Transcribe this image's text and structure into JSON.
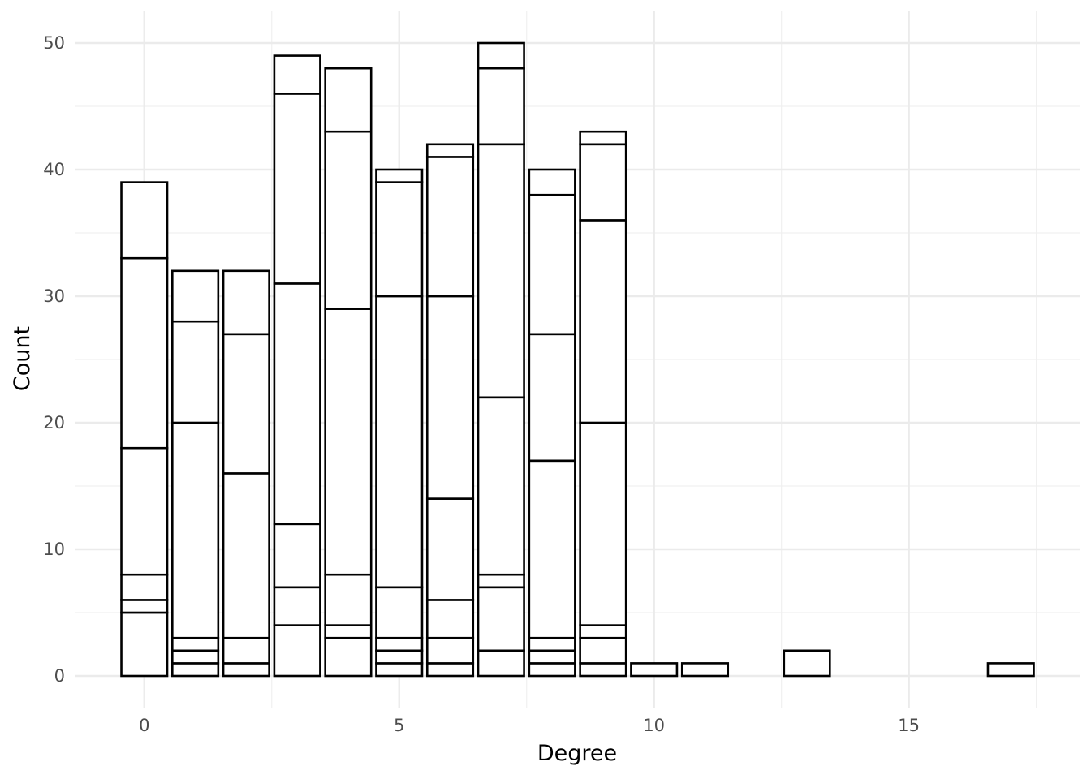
{
  "chart_data": {
    "type": "bar",
    "stacked": true,
    "title": "",
    "xlabel": "Degree",
    "ylabel": "Count",
    "xlim": [
      -1.35,
      18.35
    ],
    "ylim": [
      -2.5,
      52.5
    ],
    "x_ticks": [
      0,
      5,
      10,
      15
    ],
    "y_ticks": [
      0,
      10,
      20,
      30,
      40,
      50
    ],
    "grid": true,
    "legend": "none",
    "bar_fill": "#ffffff",
    "bar_outline": "#000000",
    "bars": [
      {
        "x": 0,
        "segment_tops": [
          5,
          6,
          8,
          18,
          33,
          39
        ]
      },
      {
        "x": 1,
        "segment_tops": [
          1,
          2,
          3,
          20,
          28,
          32
        ]
      },
      {
        "x": 2,
        "segment_tops": [
          1,
          3,
          16,
          27,
          32
        ]
      },
      {
        "x": 3,
        "segment_tops": [
          4,
          7,
          12,
          31,
          46,
          49
        ]
      },
      {
        "x": 4,
        "segment_tops": [
          3,
          4,
          8,
          29,
          43,
          48
        ]
      },
      {
        "x": 5,
        "segment_tops": [
          1,
          2,
          3,
          7,
          30,
          39,
          40
        ]
      },
      {
        "x": 6,
        "segment_tops": [
          1,
          3,
          6,
          14,
          30,
          41,
          42
        ]
      },
      {
        "x": 7,
        "segment_tops": [
          2,
          7,
          8,
          22,
          42,
          48,
          50
        ]
      },
      {
        "x": 8,
        "segment_tops": [
          1,
          2,
          3,
          17,
          27,
          38,
          40
        ]
      },
      {
        "x": 9,
        "segment_tops": [
          1,
          3,
          4,
          20,
          36,
          42,
          43
        ]
      },
      {
        "x": 10,
        "segment_tops": [
          1
        ]
      },
      {
        "x": 11,
        "segment_tops": [
          1
        ]
      },
      {
        "x": 13,
        "segment_tops": [
          2
        ]
      },
      {
        "x": 17,
        "segment_tops": [
          1
        ]
      }
    ]
  }
}
